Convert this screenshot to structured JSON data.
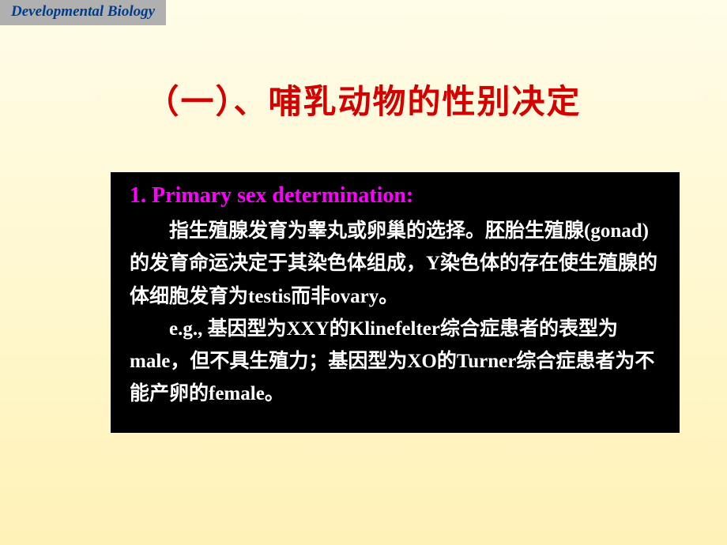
{
  "header": {
    "label": "Developmental Biology"
  },
  "title": "（一）、哺乳动物的性别决定",
  "content": {
    "heading": "1. Primary sex determination:",
    "paragraph1": "指生殖腺发育为睾丸或卵巢的选择。胚胎生殖腺(gonad)的发育命运决定于其染色体组成，Y染色体的存在使生殖腺的体细胞发育为testis而非ovary。",
    "paragraph2": "e.g., 基因型为XXY的Klinefelter综合症患者的表型为male，但不具生殖力；基因型为XO的Turner综合症患者为不能产卵的female。"
  },
  "colors": {
    "badge_bg": "#b0b0b0",
    "badge_text": "#003c8c",
    "title_text": "#d40000",
    "content_bg": "#000000",
    "heading_text": "#ff00ff",
    "body_text": "#ffffff"
  }
}
